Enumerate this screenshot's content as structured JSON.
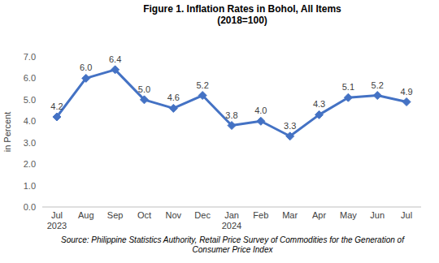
{
  "chart_data": {
    "type": "line",
    "title": "Figure 1. Inflation Rates in Bohol, All Items",
    "subtitle": "(2018=100)",
    "y_label": "in Percent",
    "categories": [
      "Jul 2023",
      "Aug",
      "Sep",
      "Oct",
      "Nov",
      "Dec",
      "Jan 2024",
      "Feb",
      "Mar",
      "Apr",
      "May",
      "Jun",
      "Jul"
    ],
    "values": [
      4.2,
      6.0,
      6.4,
      5.0,
      4.6,
      5.2,
      3.8,
      4.0,
      3.3,
      4.3,
      5.1,
      5.2,
      4.9
    ],
    "value_labels": [
      "4.2",
      "6.0",
      "6.4",
      "5.0",
      "4.6",
      "5.2",
      "3.8",
      "4.0",
      "3.3",
      "4.3",
      "5.1",
      "5.2",
      "4.9"
    ],
    "color": "#4472c4",
    "marker": "diamond",
    "line_style": "solid",
    "data_labels": true,
    "grid": false,
    "ylim": [
      0,
      7
    ],
    "yticks": [
      {
        "value": 0,
        "label": "0.0"
      },
      {
        "value": 1,
        "label": "1.0"
      },
      {
        "value": 2,
        "label": "2.0"
      },
      {
        "value": 3,
        "label": "3.0"
      },
      {
        "value": 4,
        "label": "4.0"
      },
      {
        "value": 5,
        "label": "5.0"
      },
      {
        "value": 6,
        "label": "6.0"
      },
      {
        "value": 7,
        "label": "7.0"
      }
    ],
    "annotations": [
      "Source: Philippine Statistics Authority, Retail Price Survey of Commodities for the Generation of",
      "Consumer Price Index"
    ]
  }
}
